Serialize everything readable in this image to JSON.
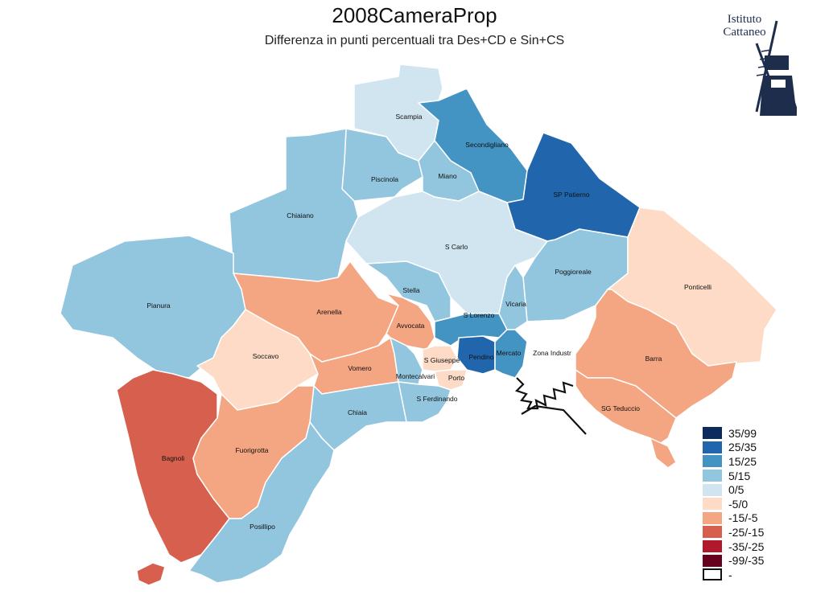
{
  "title": "2008CameraProp",
  "subtitle": "Differenza in punti percentuali tra Des+CD e Sin+CS",
  "logo": {
    "line1": "Istituto",
    "line2": "Cattaneo"
  },
  "legend": [
    {
      "label": "35/99",
      "color": "#0b2b5e"
    },
    {
      "label": "25/35",
      "color": "#2166ac"
    },
    {
      "label": "15/25",
      "color": "#4393c3"
    },
    {
      "label": "5/15",
      "color": "#92c5de"
    },
    {
      "label": "0/5",
      "color": "#d1e5f0"
    },
    {
      "label": "-5/0",
      "color": "#fddbc7"
    },
    {
      "label": "-15/-5",
      "color": "#f4a582"
    },
    {
      "label": "-25/-15",
      "color": "#d6604d"
    },
    {
      "label": "-35/-25",
      "color": "#b2182b"
    },
    {
      "label": "-99/-35",
      "color": "#67001f"
    },
    {
      "label": "-",
      "color": "#ffffff"
    }
  ],
  "districts": [
    {
      "name": "Scampia",
      "class": "0/5"
    },
    {
      "name": "Secondigliano",
      "class": "15/25"
    },
    {
      "name": "SP Patierno",
      "class": "25/35"
    },
    {
      "name": "Piscinola",
      "class": "5/15"
    },
    {
      "name": "Miano",
      "class": "5/15"
    },
    {
      "name": "Chiaiano",
      "class": "5/15"
    },
    {
      "name": "S Carlo",
      "class": "0/5"
    },
    {
      "name": "Poggioreale",
      "class": "5/15"
    },
    {
      "name": "Ponticelli",
      "class": "-5/0"
    },
    {
      "name": "Pianura",
      "class": "5/15"
    },
    {
      "name": "Stella",
      "class": "5/15"
    },
    {
      "name": "Arenella",
      "class": "-15/-5"
    },
    {
      "name": "Avvocata",
      "class": "-15/-5"
    },
    {
      "name": "S Lorenzo",
      "class": "15/25"
    },
    {
      "name": "Vicaria",
      "class": "5/15"
    },
    {
      "name": "Soccavo",
      "class": "-5/0"
    },
    {
      "name": "Vomero",
      "class": "-15/-5"
    },
    {
      "name": "Montecalvario",
      "label": "Montecalvari",
      "class": "5/15"
    },
    {
      "name": "S Giuseppe",
      "class": "-5/0"
    },
    {
      "name": "Pendino",
      "class": "25/35"
    },
    {
      "name": "Mercato",
      "class": "15/25"
    },
    {
      "name": "Porto",
      "class": "-5/0"
    },
    {
      "name": "Zona Industriale",
      "label": "Zona Industr",
      "class": "-"
    },
    {
      "name": "Barra",
      "class": "-15/-5"
    },
    {
      "name": "SG Teduccio",
      "class": "-15/-5"
    },
    {
      "name": "S Ferdinando",
      "class": "5/15"
    },
    {
      "name": "Chiaia",
      "class": "5/15"
    },
    {
      "name": "Bagnoli",
      "class": "-25/-15"
    },
    {
      "name": "Fuorigrotta",
      "class": "-15/-5"
    },
    {
      "name": "Posillipo",
      "class": "5/15"
    }
  ]
}
